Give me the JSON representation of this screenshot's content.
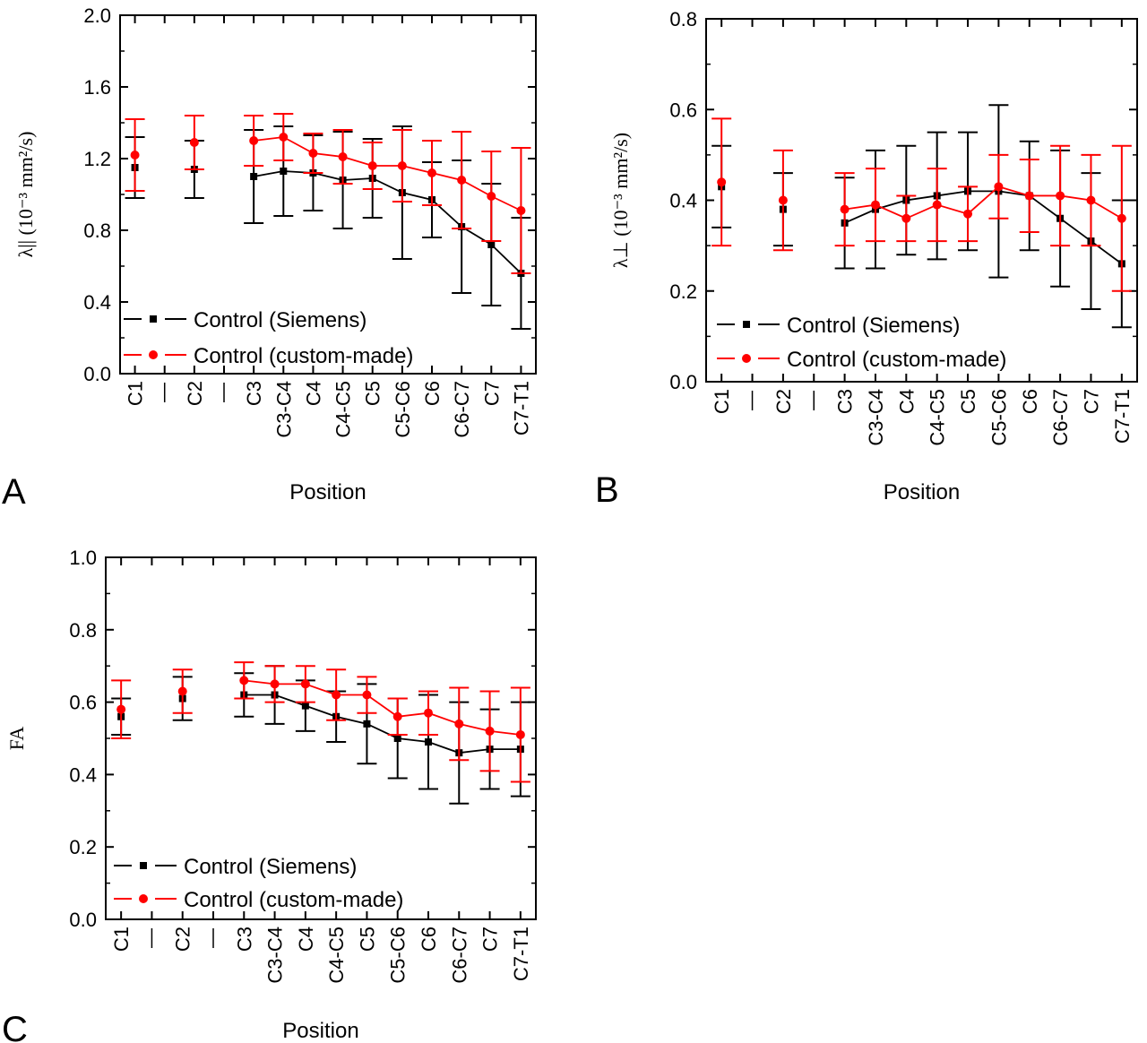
{
  "chart_data": [
    {
      "type": "line",
      "panel_letter": "A",
      "categories": [
        "C1",
        "",
        "C2",
        "",
        "C3",
        "C3-C4",
        "C4",
        "C4-C5",
        "C5",
        "C5-C6",
        "C6",
        "C6-C7",
        "C7",
        "C7-T1"
      ],
      "xlabel": "Position",
      "ylabel": "λ|| (10⁻³ mm²/s)",
      "ylim": [
        0,
        2.0
      ],
      "yticks": [
        "0.0",
        "0.4",
        "0.8",
        "1.2",
        "1.6",
        "2.0"
      ],
      "error_bars": true,
      "series": [
        {
          "name": "Control (Siemens)",
          "color": "#000000",
          "marker": "square",
          "values": [
            1.15,
            null,
            1.14,
            null,
            1.1,
            1.13,
            1.12,
            1.08,
            1.09,
            1.01,
            0.97,
            0.82,
            0.72,
            0.56
          ],
          "errors": [
            0.17,
            null,
            0.16,
            null,
            0.26,
            0.25,
            0.21,
            0.27,
            0.22,
            0.37,
            0.21,
            0.37,
            0.34,
            0.31
          ]
        },
        {
          "name": "Control (custom-made)",
          "color": "#ff0000",
          "marker": "circle",
          "values": [
            1.22,
            null,
            1.29,
            null,
            1.3,
            1.32,
            1.23,
            1.21,
            1.16,
            1.16,
            1.12,
            1.08,
            0.99,
            0.91
          ],
          "errors": [
            0.2,
            null,
            0.15,
            null,
            0.14,
            0.13,
            0.11,
            0.15,
            0.13,
            0.2,
            0.18,
            0.27,
            0.25,
            0.35
          ]
        }
      ],
      "legend": "bottom-left"
    },
    {
      "type": "line",
      "panel_letter": "B",
      "categories": [
        "C1",
        "",
        "C2",
        "",
        "C3",
        "C3-C4",
        "C4",
        "C4-C5",
        "C5",
        "C5-C6",
        "C6",
        "C6-C7",
        "C7",
        "C7-T1"
      ],
      "xlabel": "Position",
      "ylabel": "λ⊥ (10⁻³ mm²/s)",
      "ylim": [
        0,
        0.8
      ],
      "yticks": [
        "0.0",
        "0.2",
        "0.4",
        "0.6",
        "0.8"
      ],
      "error_bars": true,
      "series": [
        {
          "name": "Control (Siemens)",
          "color": "#000000",
          "marker": "square",
          "values": [
            0.43,
            null,
            0.38,
            null,
            0.35,
            0.38,
            0.4,
            0.41,
            0.42,
            0.42,
            0.41,
            0.36,
            0.31,
            0.26
          ],
          "errors": [
            0.09,
            null,
            0.08,
            null,
            0.1,
            0.13,
            0.12,
            0.14,
            0.13,
            0.19,
            0.12,
            0.15,
            0.15,
            0.14
          ]
        },
        {
          "name": "Control (custom-made)",
          "color": "#ff0000",
          "marker": "circle",
          "values": [
            0.44,
            null,
            0.4,
            null,
            0.38,
            0.39,
            0.36,
            0.39,
            0.37,
            0.43,
            0.41,
            0.41,
            0.4,
            0.36
          ],
          "errors": [
            0.14,
            null,
            0.11,
            null,
            0.08,
            0.08,
            0.05,
            0.08,
            0.06,
            0.07,
            0.08,
            0.11,
            0.1,
            0.16
          ]
        }
      ],
      "legend": "bottom-left"
    },
    {
      "type": "line",
      "panel_letter": "C",
      "categories": [
        "C1",
        "",
        "C2",
        "",
        "C3",
        "C3-C4",
        "C4",
        "C4-C5",
        "C5",
        "C5-C6",
        "C6",
        "C6-C7",
        "C7",
        "C7-T1"
      ],
      "xlabel": "Position",
      "ylabel": "FA",
      "ylim": [
        0,
        1.0
      ],
      "yticks": [
        "0.0",
        "0.2",
        "0.4",
        "0.6",
        "0.8",
        "1.0"
      ],
      "error_bars": true,
      "series": [
        {
          "name": "Control (Siemens)",
          "color": "#000000",
          "marker": "square",
          "values": [
            0.56,
            null,
            0.61,
            null,
            0.62,
            0.62,
            0.59,
            0.56,
            0.54,
            0.5,
            0.49,
            0.46,
            0.47,
            0.47
          ],
          "errors": [
            0.05,
            null,
            0.06,
            null,
            0.06,
            0.08,
            0.07,
            0.07,
            0.11,
            0.11,
            0.13,
            0.14,
            0.11,
            0.13
          ]
        },
        {
          "name": "Control (custom-made)",
          "color": "#ff0000",
          "marker": "circle",
          "values": [
            0.58,
            null,
            0.63,
            null,
            0.66,
            0.65,
            0.65,
            0.62,
            0.62,
            0.56,
            0.57,
            0.54,
            0.52,
            0.51
          ],
          "errors": [
            0.08,
            null,
            0.06,
            null,
            0.05,
            0.05,
            0.05,
            0.07,
            0.05,
            0.05,
            0.06,
            0.1,
            0.11,
            0.13
          ]
        }
      ],
      "legend": "bottom-left"
    }
  ]
}
